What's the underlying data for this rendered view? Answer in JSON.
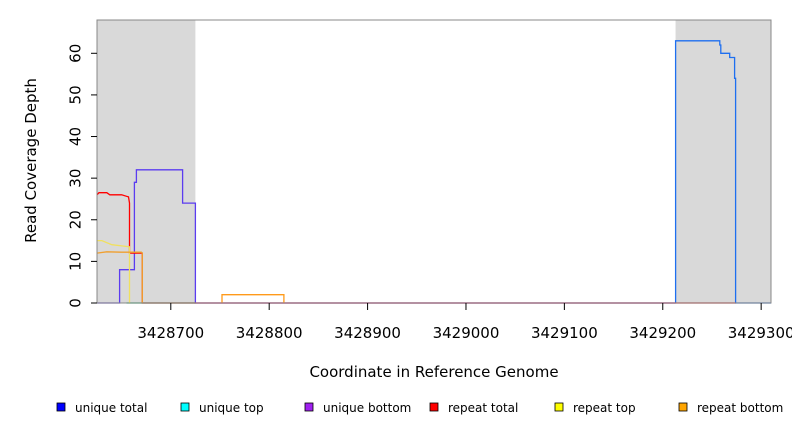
{
  "chart_data": {
    "type": "line",
    "title": "",
    "xlabel": "Coordinate in Reference Genome",
    "ylabel": "Read Coverage Depth",
    "xlim": [
      3428625,
      3429310
    ],
    "ylim": [
      0,
      68
    ],
    "x_ticks": [
      3428700,
      3428800,
      3428900,
      3429000,
      3429100,
      3429200,
      3429300
    ],
    "x_tick_labels": [
      "3428700",
      "3428800",
      "3428900",
      "3429000",
      "3429100",
      "3429200",
      "3429300"
    ],
    "y_ticks": [
      0,
      10,
      20,
      30,
      40,
      50,
      60
    ],
    "y_tick_labels": [
      "0",
      "10",
      "20",
      "30",
      "40",
      "50",
      "60"
    ],
    "grid": false,
    "legend_position": "bottom",
    "shaded_regions": [
      {
        "x0": 3428625,
        "x1": 3428725,
        "color": "#d9d9d9"
      },
      {
        "x0": 3429213,
        "x1": 3429310,
        "color": "#d9d9d9"
      }
    ],
    "legend": [
      {
        "label": "unique total",
        "color": "#0000ff"
      },
      {
        "label": "unique top",
        "color": "#00ffff"
      },
      {
        "label": "unique bottom",
        "color": "#a020f0"
      },
      {
        "label": "repeat total",
        "color": "#ff0000"
      },
      {
        "label": "repeat top",
        "color": "#ffff00"
      },
      {
        "label": "repeat bottom",
        "color": "#ffa500"
      }
    ],
    "series": [
      {
        "name": "unique total",
        "color": "#5b3cf0",
        "points": [
          [
            3428625,
            0
          ],
          [
            3428648,
            0
          ],
          [
            3428648,
            8
          ],
          [
            3428663,
            8
          ],
          [
            3428663,
            29
          ],
          [
            3428665,
            29
          ],
          [
            3428665,
            32
          ],
          [
            3428712,
            32
          ],
          [
            3428712,
            24
          ],
          [
            3428725,
            24
          ],
          [
            3428725,
            0
          ],
          [
            3429213,
            0
          ]
        ]
      },
      {
        "name": "unique total",
        "color": "#1e6ff0",
        "points": [
          [
            3429213,
            0
          ],
          [
            3429213,
            63
          ],
          [
            3429258,
            63
          ],
          [
            3429258,
            62
          ],
          [
            3429259,
            62
          ],
          [
            3429259,
            60
          ],
          [
            3429268,
            60
          ],
          [
            3429268,
            59
          ],
          [
            3429273,
            59
          ],
          [
            3429273,
            54
          ],
          [
            3429274,
            54
          ],
          [
            3429274,
            0
          ],
          [
            3429310,
            0
          ]
        ]
      },
      {
        "name": "unique top",
        "color": "#00cc66",
        "points": [
          [
            3428655,
            0
          ],
          [
            3428725,
            0
          ]
        ]
      },
      {
        "name": "repeat total",
        "color": "#ff0000",
        "points": [
          [
            3428625,
            26
          ],
          [
            3428627,
            26.5
          ],
          [
            3428635,
            26.5
          ],
          [
            3428638,
            26
          ],
          [
            3428650,
            26
          ],
          [
            3428657,
            25.5
          ],
          [
            3428658,
            24
          ],
          [
            3428658,
            12
          ],
          [
            3428671,
            12
          ],
          [
            3428671,
            0
          ],
          [
            3429213,
            0
          ],
          [
            3429274,
            0
          ]
        ]
      },
      {
        "name": "repeat top",
        "color": "#f0e060",
        "points": [
          [
            3428625,
            15
          ],
          [
            3428630,
            15
          ],
          [
            3428640,
            14
          ],
          [
            3428658,
            13.5
          ],
          [
            3428658,
            0
          ]
        ]
      },
      {
        "name": "repeat bottom",
        "color": "#f0a030",
        "points": [
          [
            3428625,
            12
          ],
          [
            3428635,
            12.3
          ],
          [
            3428650,
            12.2
          ],
          [
            3428670,
            12.2
          ],
          [
            3428671,
            12
          ],
          [
            3428671,
            0
          ]
        ]
      },
      {
        "name": "repeat bottom",
        "color": "#ff9a1a",
        "points": [
          [
            3428752,
            0
          ],
          [
            3428752,
            2
          ],
          [
            3428815,
            2
          ],
          [
            3428815,
            0
          ]
        ]
      }
    ]
  }
}
